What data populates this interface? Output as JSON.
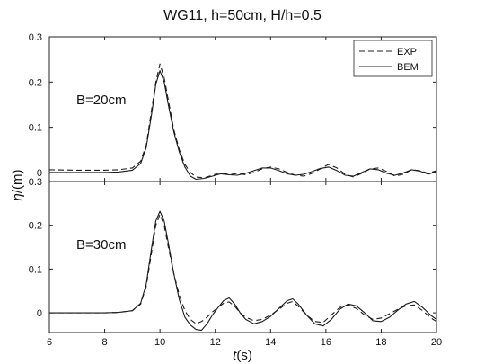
{
  "chart_data": {
    "type": "line",
    "title": "WG11, h=50cm, H/h=0.5",
    "xlabel_symbol": "t",
    "xlabel_unit": "(s)",
    "ylabel_symbol": "η",
    "ylabel_unit": "/(m)",
    "xlim": [
      6,
      20
    ],
    "x_ticks": [
      6,
      8,
      10,
      12,
      14,
      16,
      18,
      20
    ],
    "x_tick_labels": [
      "6",
      "8",
      "10",
      "12",
      "14",
      "16",
      "18",
      "20"
    ],
    "legend": {
      "placement": "top-right",
      "entries": [
        {
          "name": "EXP",
          "style": "dashed"
        },
        {
          "name": "BEM",
          "style": "solid"
        }
      ]
    },
    "panels": [
      {
        "label": "B=20cm",
        "ylim": [
          -0.02,
          0.3
        ],
        "y_ticks": [
          0,
          0.1,
          0.2,
          0.3
        ],
        "y_tick_labels": [
          "0",
          "0.1",
          "0.2",
          "0.3"
        ],
        "series": [
          {
            "name": "EXP",
            "x": [
              6,
              7,
              8,
              8.5,
              9,
              9.3,
              9.5,
              9.7,
              9.85,
              10,
              10.15,
              10.3,
              10.5,
              10.7,
              10.9,
              11.1,
              11.3,
              11.6,
              11.9,
              12.2,
              12.5,
              12.8,
              13.1,
              13.4,
              13.7,
              14,
              14.3,
              14.6,
              14.9,
              15.2,
              15.5,
              15.8,
              16.1,
              16.4,
              16.7,
              17,
              17.3,
              17.6,
              17.9,
              18.2,
              18.5,
              18.8,
              19.1,
              19.4,
              19.7,
              20
            ],
            "y": [
              0.006,
              0.005,
              0.005,
              0.006,
              0.01,
              0.025,
              0.06,
              0.14,
              0.2,
              0.24,
              0.21,
              0.16,
              0.095,
              0.05,
              0.018,
              0.0,
              -0.01,
              -0.012,
              -0.006,
              0.0,
              -0.005,
              -0.002,
              -0.005,
              0.0,
              0.008,
              0.012,
              0.008,
              0.0,
              -0.006,
              -0.008,
              -0.002,
              0.008,
              0.018,
              0.01,
              -0.004,
              -0.01,
              -0.002,
              0.008,
              0.01,
              0.002,
              -0.008,
              -0.004,
              0.006,
              0.004,
              -0.002,
              0.004
            ]
          },
          {
            "name": "BEM",
            "x": [
              6,
              7,
              8,
              8.5,
              9,
              9.3,
              9.5,
              9.7,
              9.85,
              10,
              10.15,
              10.3,
              10.5,
              10.7,
              10.9,
              11.1,
              11.3,
              11.6,
              11.9,
              12.2,
              12.5,
              12.8,
              13.1,
              13.4,
              13.7,
              14,
              14.3,
              14.6,
              14.9,
              15.2,
              15.5,
              15.8,
              16.1,
              16.4,
              16.7,
              17,
              17.3,
              17.6,
              17.9,
              18.2,
              18.5,
              18.8,
              19.1,
              19.4,
              19.7,
              20
            ],
            "y": [
              0.0,
              0.0,
              0.0,
              0.001,
              0.005,
              0.02,
              0.055,
              0.13,
              0.195,
              0.225,
              0.2,
              0.15,
              0.09,
              0.045,
              0.012,
              -0.008,
              -0.015,
              -0.013,
              -0.008,
              -0.003,
              -0.005,
              -0.006,
              -0.002,
              0.004,
              0.01,
              0.01,
              0.004,
              -0.003,
              -0.006,
              -0.004,
              0.002,
              0.009,
              0.012,
              0.004,
              -0.006,
              -0.008,
              0.0,
              0.008,
              0.006,
              -0.002,
              -0.006,
              -0.001,
              0.006,
              0.003,
              -0.004,
              0.002
            ]
          }
        ]
      },
      {
        "label": "B=30cm",
        "ylim": [
          -0.045,
          0.3
        ],
        "y_ticks": [
          0,
          0.1,
          0.2,
          0.3
        ],
        "y_tick_labels": [
          "0",
          "0.1",
          "0.2",
          "0.3"
        ],
        "series": [
          {
            "name": "EXP",
            "x": [
              6,
              7,
              8,
              8.5,
              9,
              9.3,
              9.5,
              9.7,
              9.85,
              10,
              10.15,
              10.3,
              10.5,
              10.7,
              10.9,
              11.1,
              11.3,
              11.5,
              11.7,
              11.9,
              12.1,
              12.3,
              12.5,
              12.7,
              12.9,
              13.1,
              13.4,
              13.7,
              14,
              14.3,
              14.6,
              14.8,
              15,
              15.3,
              15.6,
              15.9,
              16.2,
              16.5,
              16.8,
              17.1,
              17.4,
              17.7,
              18,
              18.3,
              18.6,
              18.9,
              19.2,
              19.5,
              19.8,
              20
            ],
            "y": [
              0.0,
              0.0,
              0.0,
              0.001,
              0.005,
              0.02,
              0.06,
              0.14,
              0.2,
              0.225,
              0.2,
              0.15,
              0.09,
              0.04,
              0.005,
              -0.015,
              -0.025,
              -0.02,
              -0.01,
              0.002,
              0.012,
              0.022,
              0.025,
              0.015,
              0.0,
              -0.01,
              -0.018,
              -0.015,
              -0.005,
              0.008,
              0.022,
              0.026,
              0.015,
              -0.005,
              -0.02,
              -0.022,
              -0.005,
              0.012,
              0.018,
              0.01,
              -0.005,
              -0.015,
              -0.012,
              -0.002,
              0.008,
              0.016,
              0.018,
              0.005,
              -0.012,
              -0.02
            ]
          },
          {
            "name": "BEM",
            "x": [
              6,
              7,
              8,
              8.5,
              9,
              9.3,
              9.5,
              9.7,
              9.85,
              10,
              10.15,
              10.3,
              10.5,
              10.7,
              10.9,
              11.1,
              11.3,
              11.5,
              11.7,
              11.9,
              12.1,
              12.3,
              12.5,
              12.7,
              12.9,
              13.1,
              13.4,
              13.7,
              14,
              14.3,
              14.6,
              14.8,
              15,
              15.3,
              15.6,
              15.9,
              16.2,
              16.5,
              16.8,
              17.1,
              17.4,
              17.7,
              18,
              18.3,
              18.6,
              18.9,
              19.2,
              19.5,
              19.8,
              20
            ],
            "y": [
              0.0,
              0.0,
              0.0,
              0.001,
              0.005,
              0.022,
              0.065,
              0.15,
              0.21,
              0.232,
              0.21,
              0.16,
              0.09,
              0.03,
              -0.01,
              -0.028,
              -0.038,
              -0.04,
              -0.025,
              -0.005,
              0.012,
              0.028,
              0.034,
              0.02,
              0.0,
              -0.015,
              -0.025,
              -0.02,
              -0.008,
              0.01,
              0.028,
              0.032,
              0.02,
              -0.005,
              -0.025,
              -0.03,
              -0.015,
              0.008,
              0.02,
              0.016,
              0.0,
              -0.018,
              -0.02,
              -0.01,
              0.006,
              0.02,
              0.026,
              0.012,
              -0.006,
              -0.015
            ]
          }
        ]
      }
    ]
  }
}
